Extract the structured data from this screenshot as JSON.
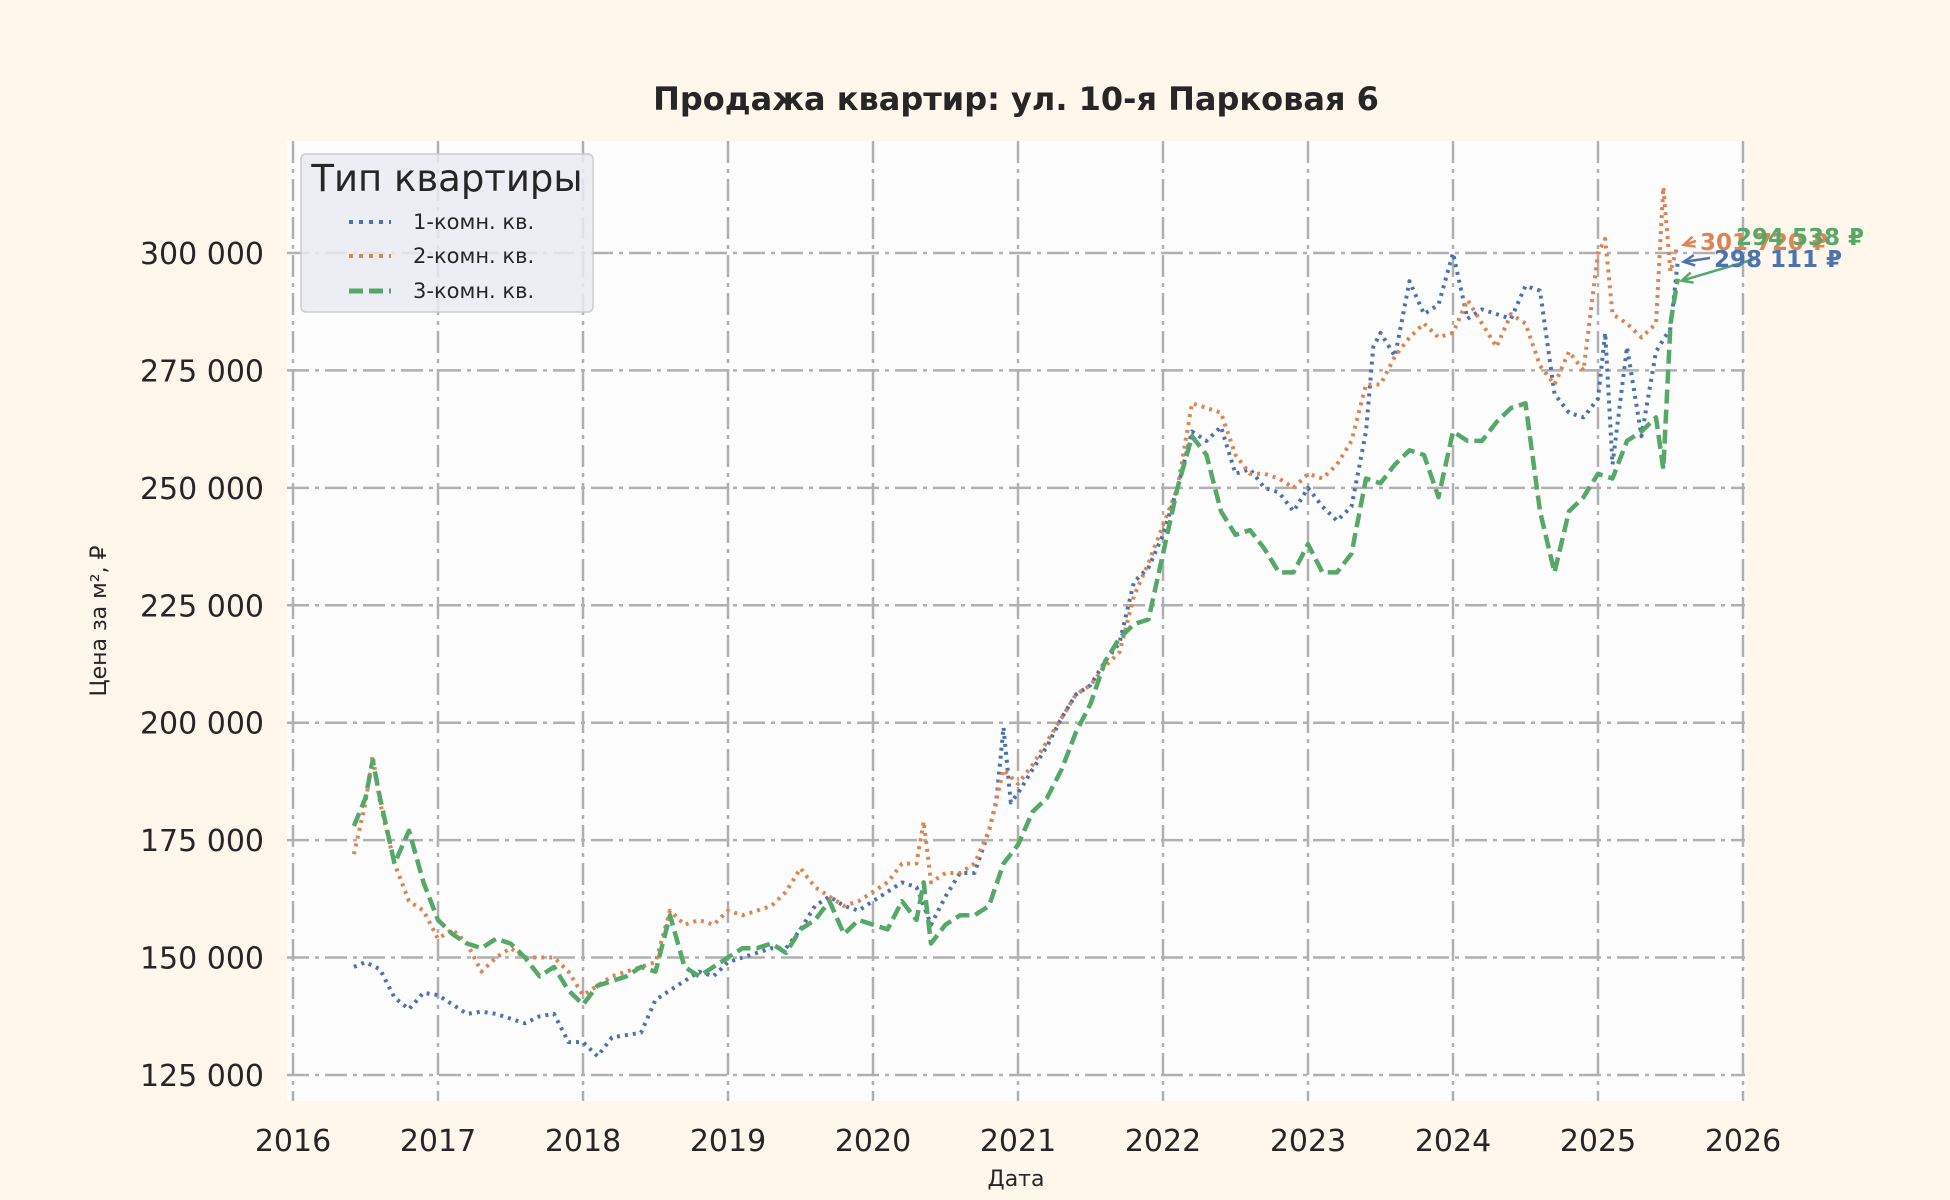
{
  "chart_data": {
    "type": "line",
    "title": "Продажа квартир: ул. 10-я Парковая 6",
    "xlabel": "Дата",
    "ylabel": "Цена за м², ₽",
    "xlim": [
      2016,
      2026
    ],
    "ylim": [
      120000,
      325000
    ],
    "x_ticks": [
      "2016",
      "2017",
      "2018",
      "2019",
      "2020",
      "2021",
      "2022",
      "2023",
      "2024",
      "2025",
      "2026"
    ],
    "y_ticks": [
      "125 000",
      "150 000",
      "175 000",
      "200 000",
      "225 000",
      "250 000",
      "275 000",
      "300 000"
    ],
    "y_tick_values": [
      125000,
      150000,
      175000,
      200000,
      225000,
      250000,
      275000,
      300000
    ],
    "grid": true,
    "background": "#FFF6EC",
    "plot_background": "#FDFDFD",
    "legend": {
      "title": "Тип квартиры",
      "position": "upper left",
      "entries": [
        "1-комн. кв.",
        "2-комн. кв.",
        "3-комн. кв."
      ]
    },
    "series": [
      {
        "name": "1-комн. кв.",
        "color": "#4C72B0",
        "style": "dotted",
        "x": [
          2016.42,
          2016.5,
          2016.6,
          2016.7,
          2016.8,
          2016.9,
          2017.0,
          2017.1,
          2017.2,
          2017.3,
          2017.4,
          2017.5,
          2017.6,
          2017.7,
          2017.8,
          2017.9,
          2018.0,
          2018.1,
          2018.2,
          2018.3,
          2018.4,
          2018.5,
          2018.6,
          2018.7,
          2018.8,
          2018.9,
          2019.0,
          2019.1,
          2019.2,
          2019.3,
          2019.4,
          2019.5,
          2019.6,
          2019.7,
          2019.8,
          2019.9,
          2020.0,
          2020.1,
          2020.2,
          2020.3,
          2020.4,
          2020.5,
          2020.6,
          2020.7,
          2020.8,
          2020.85,
          2020.9,
          2020.95,
          2021.0,
          2021.1,
          2021.2,
          2021.3,
          2021.4,
          2021.5,
          2021.6,
          2021.7,
          2021.8,
          2021.9,
          2022.0,
          2022.1,
          2022.2,
          2022.3,
          2022.4,
          2022.5,
          2022.6,
          2022.7,
          2022.8,
          2022.9,
          2023.0,
          2023.1,
          2023.2,
          2023.3,
          2023.4,
          2023.45,
          2023.5,
          2023.6,
          2023.7,
          2023.8,
          2023.9,
          2024.0,
          2024.1,
          2024.2,
          2024.3,
          2024.4,
          2024.5,
          2024.6,
          2024.7,
          2024.8,
          2024.9,
          2025.0,
          2025.05,
          2025.1,
          2025.2,
          2025.3,
          2025.4,
          2025.5,
          2025.55
        ],
        "values": [
          148000,
          149000,
          147500,
          141500,
          139000,
          142500,
          142000,
          140000,
          138000,
          138500,
          138000,
          137000,
          136000,
          137500,
          138000,
          132000,
          132000,
          129000,
          133000,
          133500,
          134000,
          141000,
          143000,
          145000,
          147000,
          146000,
          149000,
          150000,
          151000,
          152000,
          152000,
          156000,
          161000,
          163000,
          161000,
          160000,
          162000,
          164000,
          166000,
          165000,
          157000,
          163000,
          168000,
          168000,
          177000,
          183000,
          199000,
          183000,
          185000,
          190000,
          195000,
          201000,
          206000,
          208000,
          213000,
          217000,
          230000,
          233000,
          240000,
          250000,
          262000,
          260000,
          263000,
          253000,
          254000,
          250000,
          249000,
          245000,
          250000,
          246000,
          243000,
          246000,
          262000,
          280000,
          283000,
          278000,
          294000,
          287000,
          289000,
          300000,
          286000,
          288000,
          287000,
          286000,
          293000,
          292000,
          270000,
          266000,
          265000,
          269000,
          283000,
          255000,
          280000,
          261000,
          279000,
          284000,
          298111
        ]
      },
      {
        "name": "2-комн. кв.",
        "color": "#DD8452",
        "style": "dotted",
        "x": [
          2016.42,
          2016.5,
          2016.55,
          2016.6,
          2016.7,
          2016.8,
          2016.9,
          2017.0,
          2017.1,
          2017.2,
          2017.3,
          2017.4,
          2017.5,
          2017.6,
          2017.7,
          2017.8,
          2017.9,
          2018.0,
          2018.1,
          2018.2,
          2018.3,
          2018.4,
          2018.5,
          2018.6,
          2018.7,
          2018.8,
          2018.9,
          2019.0,
          2019.1,
          2019.2,
          2019.3,
          2019.4,
          2019.5,
          2019.6,
          2019.7,
          2019.8,
          2019.9,
          2020.0,
          2020.1,
          2020.2,
          2020.3,
          2020.35,
          2020.4,
          2020.5,
          2020.6,
          2020.7,
          2020.8,
          2020.9,
          2021.0,
          2021.1,
          2021.2,
          2021.3,
          2021.4,
          2021.5,
          2021.6,
          2021.7,
          2021.8,
          2021.9,
          2022.0,
          2022.1,
          2022.2,
          2022.3,
          2022.4,
          2022.5,
          2022.6,
          2022.7,
          2022.8,
          2022.9,
          2023.0,
          2023.1,
          2023.2,
          2023.3,
          2023.4,
          2023.5,
          2023.6,
          2023.7,
          2023.8,
          2023.9,
          2024.0,
          2024.1,
          2024.2,
          2024.3,
          2024.4,
          2024.5,
          2024.6,
          2024.7,
          2024.8,
          2024.9,
          2025.0,
          2025.05,
          2025.1,
          2025.2,
          2025.3,
          2025.4,
          2025.45,
          2025.5,
          2025.55
        ],
        "values": [
          172000,
          183000,
          193000,
          183000,
          170000,
          162000,
          160000,
          154000,
          156000,
          153000,
          147000,
          150000,
          152000,
          150000,
          150000,
          150000,
          147000,
          142000,
          144000,
          146000,
          147000,
          148000,
          149000,
          160000,
          157000,
          158000,
          157000,
          160000,
          159000,
          160000,
          161000,
          164000,
          169000,
          165000,
          163000,
          161000,
          162000,
          164000,
          166000,
          170000,
          170000,
          179000,
          166000,
          168000,
          168000,
          170000,
          177000,
          190000,
          187000,
          191000,
          196000,
          201000,
          206000,
          208000,
          212000,
          215000,
          227000,
          234000,
          242000,
          250000,
          268000,
          267000,
          266000,
          257000,
          253000,
          253000,
          252000,
          250000,
          253000,
          252000,
          255000,
          260000,
          272000,
          272000,
          278000,
          282000,
          285000,
          282000,
          283000,
          290000,
          285000,
          280000,
          287000,
          285000,
          276000,
          272000,
          279000,
          275000,
          300000,
          303000,
          287000,
          285000,
          282000,
          285000,
          314000,
          296000,
          301720
        ]
      },
      {
        "name": "3-комн. кв.",
        "color": "#55A868",
        "style": "dashed",
        "x": [
          2016.42,
          2016.5,
          2016.55,
          2016.6,
          2016.7,
          2016.8,
          2016.9,
          2017.0,
          2017.1,
          2017.2,
          2017.3,
          2017.4,
          2017.5,
          2017.6,
          2017.7,
          2017.8,
          2017.9,
          2018.0,
          2018.1,
          2018.2,
          2018.3,
          2018.4,
          2018.5,
          2018.6,
          2018.7,
          2018.8,
          2018.9,
          2019.0,
          2019.1,
          2019.2,
          2019.3,
          2019.4,
          2019.5,
          2019.6,
          2019.7,
          2019.8,
          2019.9,
          2020.0,
          2020.1,
          2020.2,
          2020.3,
          2020.35,
          2020.4,
          2020.5,
          2020.6,
          2020.7,
          2020.8,
          2020.9,
          2021.0,
          2021.1,
          2021.2,
          2021.3,
          2021.4,
          2021.5,
          2021.6,
          2021.7,
          2021.8,
          2021.9,
          2022.0,
          2022.1,
          2022.2,
          2022.3,
          2022.4,
          2022.5,
          2022.6,
          2022.7,
          2022.8,
          2022.9,
          2023.0,
          2023.1,
          2023.2,
          2023.3,
          2023.4,
          2023.5,
          2023.6,
          2023.7,
          2023.8,
          2023.9,
          2024.0,
          2024.1,
          2024.2,
          2024.3,
          2024.4,
          2024.5,
          2024.6,
          2024.7,
          2024.8,
          2024.9,
          2025.0,
          2025.1,
          2025.2,
          2025.3,
          2025.4,
          2025.45,
          2025.5,
          2025.55
        ],
        "values": [
          178000,
          184000,
          192000,
          184000,
          170000,
          177000,
          166000,
          158000,
          155000,
          153000,
          152000,
          154000,
          153000,
          150000,
          146000,
          148000,
          143000,
          140000,
          144000,
          145000,
          146000,
          148000,
          147000,
          159000,
          148000,
          146000,
          148000,
          150000,
          152000,
          152000,
          153000,
          151000,
          156000,
          158000,
          162000,
          155000,
          158000,
          157000,
          156000,
          162000,
          158000,
          166000,
          153000,
          157000,
          159000,
          159000,
          161000,
          170000,
          174000,
          181000,
          184000,
          190000,
          198000,
          204000,
          213000,
          218000,
          221000,
          222000,
          236000,
          250000,
          261000,
          257000,
          245000,
          240000,
          241000,
          237000,
          232000,
          232000,
          238000,
          232000,
          232000,
          236000,
          252000,
          251000,
          255000,
          258000,
          257000,
          248000,
          262000,
          260000,
          260000,
          264000,
          267000,
          268000,
          245000,
          232000,
          245000,
          248000,
          253000,
          252000,
          260000,
          262000,
          265000,
          254000,
          285000,
          294538
        ]
      }
    ],
    "annotations": [
      {
        "text": "301 720 ₽",
        "series": "2-комн. кв.",
        "color": "#DD8452",
        "value": 301720
      },
      {
        "text": "294 538 ₽",
        "series": "3-комн. кв.",
        "color": "#55A868",
        "value": 294538
      },
      {
        "text": "298 111 ₽",
        "series": "1-комн. кв.",
        "color": "#4C72B0",
        "value": 298111
      }
    ]
  }
}
